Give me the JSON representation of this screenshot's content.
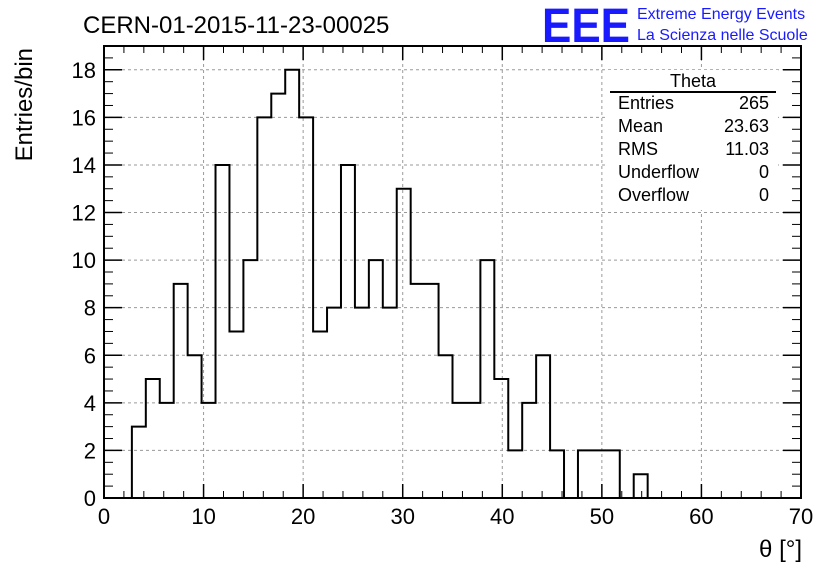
{
  "header": {
    "run_title": "CERN-01-2015-11-23-00025",
    "logo_mark": "EEE",
    "logo_line1": "Extreme Energy Events",
    "logo_line2": "La Scienza nelle Scuole",
    "logo_color": "#1a1aff"
  },
  "stats_box": {
    "title": "Theta",
    "rows": [
      {
        "label": "Entries",
        "value": "265"
      },
      {
        "label": "Mean",
        "value": "23.63"
      },
      {
        "label": "RMS",
        "value": "11.03"
      },
      {
        "label": "Underflow",
        "value": "0"
      },
      {
        "label": "Overflow",
        "value": "0"
      }
    ]
  },
  "chart_data": {
    "type": "bar",
    "subtype": "step-histogram",
    "xlabel": "θ [°]",
    "ylabel": "Entries/bin",
    "xlim": [
      0,
      70
    ],
    "ylim": [
      0,
      19
    ],
    "xticks": [
      0,
      10,
      20,
      30,
      40,
      50,
      60,
      70
    ],
    "yticks": [
      0,
      2,
      4,
      6,
      8,
      10,
      12,
      14,
      16,
      18
    ],
    "grid": true,
    "bin_width": 1.4,
    "bin_edges_start": 0,
    "values": [
      0,
      0,
      3,
      5,
      4,
      9,
      6,
      4,
      14,
      7,
      10,
      16,
      17,
      18,
      16,
      7,
      8,
      14,
      8,
      10,
      8,
      13,
      9,
      9,
      6,
      4,
      4,
      10,
      5,
      2,
      4,
      6,
      2,
      0,
      2,
      2,
      2,
      0,
      1,
      0,
      0,
      0,
      0,
      0,
      0,
      0,
      0,
      0,
      0,
      0
    ],
    "line_color": "#000000"
  }
}
